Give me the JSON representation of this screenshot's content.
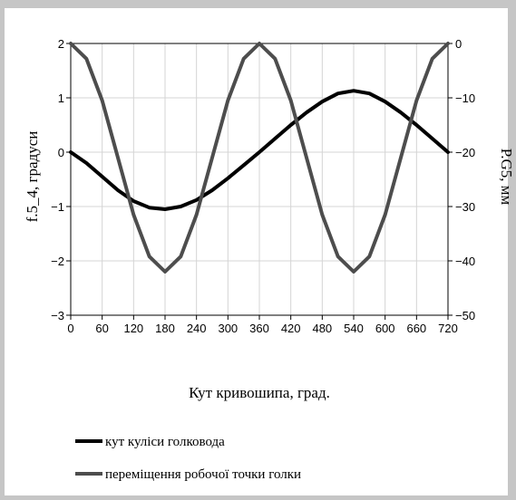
{
  "chart_data": {
    "type": "line",
    "xlabel": "Кут кривошипа, град.",
    "ylabel_left": "f.5_4, градуси",
    "ylabel_right": "P.G5, мм",
    "x_ticks": [
      "0",
      "60",
      "120",
      "180",
      "240",
      "300",
      "360",
      "420",
      "480",
      "540",
      "600",
      "660",
      "720"
    ],
    "y_left_ticks": [
      "2",
      "1",
      "0",
      "−1",
      "−2",
      "−3"
    ],
    "y_right_ticks": [
      "0",
      "−10",
      "−20",
      "−30",
      "−40",
      "−50"
    ],
    "xlim": [
      0,
      720
    ],
    "ylim_left": [
      -3,
      2
    ],
    "ylim_right": [
      -50,
      0
    ],
    "grid": true,
    "legend_position": "bottom",
    "series": [
      {
        "name": "кут куліси голковода",
        "axis": "left",
        "color": "#000000",
        "x": [
          0,
          30,
          60,
          90,
          120,
          150,
          180,
          210,
          240,
          270,
          300,
          330,
          360,
          390,
          420,
          450,
          480,
          510,
          540,
          570,
          600,
          630,
          660,
          690,
          720
        ],
        "y": [
          0,
          -0.2,
          -0.45,
          -0.7,
          -0.9,
          -1.02,
          -1.05,
          -1.0,
          -0.88,
          -0.7,
          -0.48,
          -0.24,
          0,
          0.25,
          0.5,
          0.73,
          0.93,
          1.08,
          1.13,
          1.08,
          0.93,
          0.73,
          0.5,
          0.25,
          0
        ]
      },
      {
        "name": "переміщення робочої точки голки",
        "axis": "right",
        "color": "#4d4d4d",
        "x": [
          0,
          30,
          60,
          90,
          120,
          150,
          180,
          210,
          240,
          270,
          300,
          330,
          360,
          390,
          420,
          450,
          480,
          510,
          540,
          570,
          600,
          630,
          660,
          690,
          720
        ],
        "y": [
          0,
          -2.8,
          -10.5,
          -21,
          -31.5,
          -39.2,
          -42,
          -39.2,
          -31.5,
          -21,
          -10.5,
          -2.8,
          0,
          -2.8,
          -10.5,
          -21,
          -31.5,
          -39.2,
          -42,
          -39.2,
          -31.5,
          -21,
          -10.5,
          -2.8,
          0
        ]
      }
    ]
  }
}
